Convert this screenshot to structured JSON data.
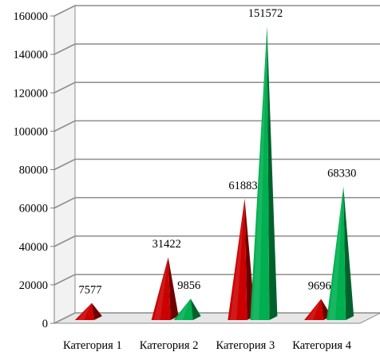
{
  "chart_data": {
    "type": "bar",
    "style": "3d-pyramid",
    "title": "",
    "xlabel": "",
    "ylabel": "",
    "categories": [
      "Категория 1",
      "Категория 2",
      "Категория 3",
      "Категория 4"
    ],
    "series": [
      {
        "color": "#cc0000",
        "values": [
          7577,
          31422,
          61883,
          9696
        ]
      },
      {
        "color": "#00b050",
        "values": [
          null,
          9856,
          151572,
          68330
        ]
      }
    ],
    "ylim": [
      0,
      160000
    ],
    "yticks": [
      "0",
      "20000",
      "40000",
      "60000",
      "80000",
      "100000",
      "120000",
      "140000",
      "160000"
    ],
    "grid": true,
    "legend": "none"
  }
}
